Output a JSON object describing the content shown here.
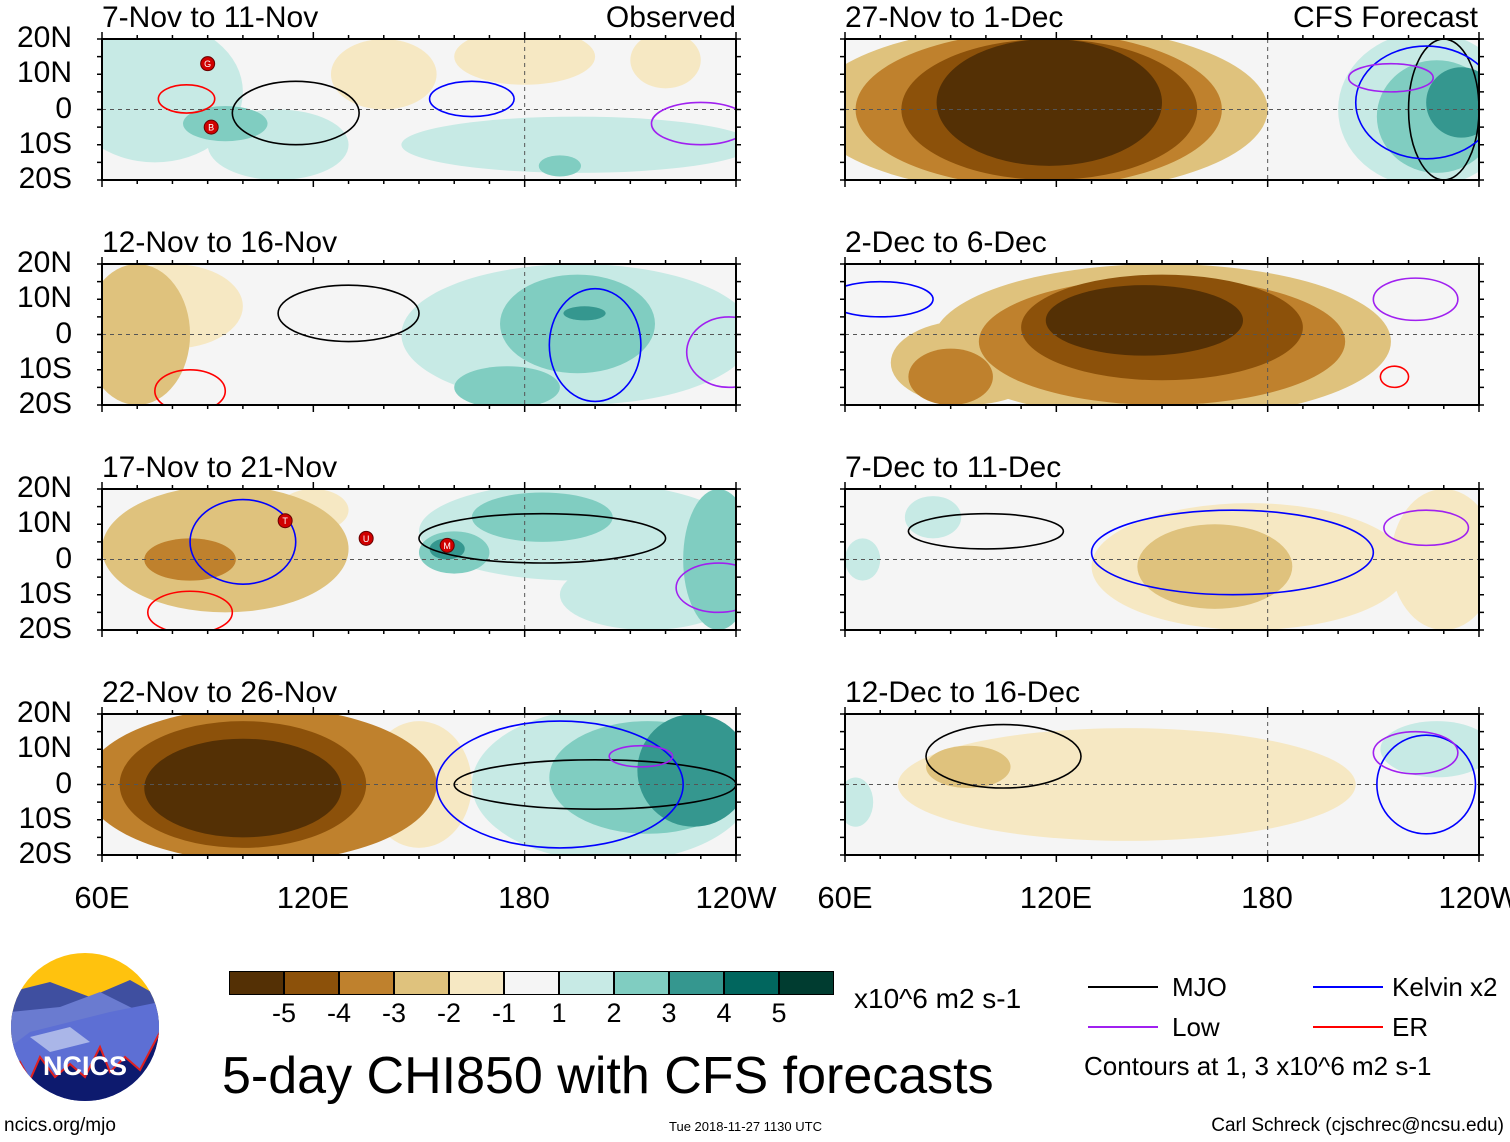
{
  "header": {
    "observed": "Observed",
    "forecast": "CFS Forecast"
  },
  "lat_labels": [
    "20N",
    "10N",
    "0",
    "10S",
    "20S"
  ],
  "lon_labels": [
    "60E",
    "120E",
    "180",
    "120W"
  ],
  "colorbar": {
    "labels": [
      "-5",
      "-4",
      "-3",
      "-2",
      "-1",
      "1",
      "2",
      "3",
      "4",
      "5"
    ],
    "units": "x10^6 m2 s-1",
    "colors": [
      "#543005",
      "#8c510a",
      "#bf812d",
      "#dfc27d",
      "#f6e8c3",
      "#f5f5f5",
      "#c7eae5",
      "#80cdc1",
      "#35978f",
      "#01665e",
      "#003c30"
    ]
  },
  "legend": {
    "mjo": "MJO",
    "kelvin": "Kelvin x2",
    "low": "Low",
    "er": "ER",
    "note": "Contours at 1, 3 x10^6 m2 s-1",
    "colors": {
      "mjo": "#000000",
      "kelvin": "#0000ff",
      "low": "#a020f0",
      "er": "#ff0000"
    }
  },
  "title": "5-day CHI850 with CFS forecasts",
  "footer": {
    "url": "ncics.org/mjo",
    "timestamp": "Tue 2018-11-27 1130 UTC",
    "author": "Carl Schreck (cjschrec@ncsu.edu)"
  },
  "logo": {
    "text": "NCICS"
  },
  "chart_data": {
    "type": "heatmap",
    "lon_range": [
      60,
      240
    ],
    "lat_range": [
      -20,
      20
    ],
    "panels": [
      {
        "title": "7-Nov to 11-Nov",
        "regions": [
          {
            "lon": 75,
            "lat": 5,
            "rlon": 25,
            "rlat": 20,
            "level": 1
          },
          {
            "lon": 95,
            "lat": -4,
            "rlon": 12,
            "rlat": 5,
            "level": 2
          },
          {
            "lon": 110,
            "lat": -10,
            "rlon": 20,
            "rlat": 10,
            "level": 1
          },
          {
            "lon": 195,
            "lat": -10,
            "rlon": 50,
            "rlat": 8,
            "level": 1
          },
          {
            "lon": 190,
            "lat": -16,
            "rlon": 6,
            "rlat": 3,
            "level": 2
          },
          {
            "lon": 180,
            "lat": 15,
            "rlon": 20,
            "rlat": 8,
            "level": -1
          },
          {
            "lon": 220,
            "lat": 14,
            "rlon": 10,
            "rlat": 8,
            "level": -1
          },
          {
            "lon": 140,
            "lat": 10,
            "rlon": 15,
            "rlat": 10,
            "level": -1
          }
        ],
        "contours": [
          {
            "type": "mjo",
            "lon": 115,
            "lat": -1,
            "rlon": 18,
            "rlat": 9
          },
          {
            "type": "er",
            "lon": 84,
            "lat": 3,
            "rlon": 8,
            "rlat": 4
          },
          {
            "type": "kelvin",
            "lon": 165,
            "lat": 3,
            "rlon": 12,
            "rlat": 5
          },
          {
            "type": "low",
            "lon": 230,
            "lat": -4,
            "rlon": 14,
            "rlat": 6
          }
        ],
        "storms": [
          {
            "label": "G",
            "lon": 90,
            "lat": 13
          },
          {
            "label": "B",
            "lon": 91,
            "lat": -5
          }
        ]
      },
      {
        "title": "12-Nov to 16-Nov",
        "regions": [
          {
            "lon": 70,
            "lat": 0,
            "rlon": 15,
            "rlat": 20,
            "level": -2
          },
          {
            "lon": 80,
            "lat": 8,
            "rlon": 20,
            "rlat": 12,
            "level": -1
          },
          {
            "lon": 195,
            "lat": 0,
            "rlon": 50,
            "rlat": 20,
            "level": 1
          },
          {
            "lon": 195,
            "lat": 3,
            "rlon": 22,
            "rlat": 14,
            "level": 2
          },
          {
            "lon": 197,
            "lat": 6,
            "rlon": 6,
            "rlat": 2,
            "level": 3
          },
          {
            "lon": 175,
            "lat": -15,
            "rlon": 15,
            "rlat": 6,
            "level": 2
          }
        ],
        "contours": [
          {
            "type": "mjo",
            "lon": 130,
            "lat": 6,
            "rlon": 20,
            "rlat": 8
          },
          {
            "type": "kelvin",
            "lon": 200,
            "lat": -3,
            "rlon": 13,
            "rlat": 16
          },
          {
            "type": "er",
            "lon": 85,
            "lat": -16,
            "rlon": 10,
            "rlat": 6
          },
          {
            "type": "low",
            "lon": 238,
            "lat": -5,
            "rlon": 12,
            "rlat": 10
          }
        ],
        "storms": []
      },
      {
        "title": "17-Nov to 21-Nov",
        "regions": [
          {
            "lon": 95,
            "lat": 3,
            "rlon": 35,
            "rlat": 18,
            "level": -2
          },
          {
            "lon": 85,
            "lat": 0,
            "rlon": 13,
            "rlat": 6,
            "level": -3
          },
          {
            "lon": 120,
            "lat": 14,
            "rlon": 10,
            "rlat": 6,
            "level": -1
          },
          {
            "lon": 195,
            "lat": 8,
            "rlon": 45,
            "rlat": 14,
            "level": 1
          },
          {
            "lon": 185,
            "lat": 12,
            "rlon": 20,
            "rlat": 7,
            "level": 2
          },
          {
            "lon": 160,
            "lat": 2,
            "rlon": 10,
            "rlat": 6,
            "level": 2
          },
          {
            "lon": 158,
            "lat": 3,
            "rlon": 5,
            "rlat": 3,
            "level": 3
          },
          {
            "lon": 235,
            "lat": 0,
            "rlon": 10,
            "rlat": 20,
            "level": 2
          },
          {
            "lon": 215,
            "lat": -10,
            "rlon": 25,
            "rlat": 10,
            "level": 1
          }
        ],
        "contours": [
          {
            "type": "mjo",
            "lon": 185,
            "lat": 6,
            "rlon": 35,
            "rlat": 7
          },
          {
            "type": "kelvin",
            "lon": 100,
            "lat": 5,
            "rlon": 15,
            "rlat": 12
          },
          {
            "type": "er",
            "lon": 85,
            "lat": -15,
            "rlon": 12,
            "rlat": 6
          },
          {
            "type": "low",
            "lon": 235,
            "lat": -8,
            "rlon": 12,
            "rlat": 7
          }
        ],
        "storms": [
          {
            "label": "T",
            "lon": 112,
            "lat": 11
          },
          {
            "label": "U",
            "lon": 135,
            "lat": 6
          },
          {
            "label": "M",
            "lon": 158,
            "lat": 4
          }
        ]
      },
      {
        "title": "22-Nov to 26-Nov",
        "regions": [
          {
            "lon": 105,
            "lat": 0,
            "rlon": 50,
            "rlat": 22,
            "level": -3
          },
          {
            "lon": 100,
            "lat": 0,
            "rlon": 35,
            "rlat": 18,
            "level": -4
          },
          {
            "lon": 100,
            "lat": -1,
            "rlon": 28,
            "rlat": 14,
            "level": -5
          },
          {
            "lon": 150,
            "lat": 0,
            "rlon": 15,
            "rlat": 18,
            "level": -1
          },
          {
            "lon": 205,
            "lat": 0,
            "rlon": 40,
            "rlat": 22,
            "level": 1
          },
          {
            "lon": 215,
            "lat": 2,
            "rlon": 28,
            "rlat": 16,
            "level": 2
          },
          {
            "lon": 228,
            "lat": 4,
            "rlon": 16,
            "rlat": 16,
            "level": 3
          }
        ],
        "contours": [
          {
            "type": "mjo",
            "lon": 200,
            "lat": 0,
            "rlon": 40,
            "rlat": 7
          },
          {
            "type": "kelvin",
            "lon": 190,
            "lat": 0,
            "rlon": 35,
            "rlat": 18
          },
          {
            "type": "low",
            "lon": 213,
            "lat": 8,
            "rlon": 9,
            "rlat": 3
          }
        ],
        "storms": []
      },
      {
        "title": "27-Nov to 1-Dec",
        "regions": [
          {
            "lon": 115,
            "lat": 0,
            "rlon": 65,
            "rlat": 24,
            "level": -2
          },
          {
            "lon": 115,
            "lat": 0,
            "rlon": 52,
            "rlat": 22,
            "level": -3
          },
          {
            "lon": 118,
            "lat": 0,
            "rlon": 42,
            "rlat": 20,
            "level": -4
          },
          {
            "lon": 118,
            "lat": 2,
            "rlon": 32,
            "rlat": 18,
            "level": -5
          },
          {
            "lon": 225,
            "lat": 0,
            "rlon": 25,
            "rlat": 22,
            "level": 1
          },
          {
            "lon": 228,
            "lat": -2,
            "rlon": 17,
            "rlat": 16,
            "level": 2
          },
          {
            "lon": 235,
            "lat": 2,
            "rlon": 10,
            "rlat": 10,
            "level": 3
          }
        ],
        "contours": [
          {
            "type": "mjo",
            "lon": 230,
            "lat": 0,
            "rlon": 10,
            "rlat": 20
          },
          {
            "type": "kelvin",
            "lon": 225,
            "lat": 2,
            "rlon": 20,
            "rlat": 16
          },
          {
            "type": "low",
            "lon": 215,
            "lat": 9,
            "rlon": 12,
            "rlat": 4
          }
        ],
        "storms": []
      },
      {
        "title": "2-Dec to 6-Dec",
        "regions": [
          {
            "lon": 150,
            "lat": -2,
            "rlon": 65,
            "rlat": 22,
            "level": -2
          },
          {
            "lon": 150,
            "lat": -2,
            "rlon": 52,
            "rlat": 18,
            "level": -3
          },
          {
            "lon": 150,
            "lat": 2,
            "rlon": 40,
            "rlat": 15,
            "level": -4
          },
          {
            "lon": 145,
            "lat": 4,
            "rlon": 28,
            "rlat": 10,
            "level": -5
          },
          {
            "lon": 90,
            "lat": -12,
            "rlon": 12,
            "rlat": 8,
            "level": -3
          },
          {
            "lon": 95,
            "lat": -8,
            "rlon": 22,
            "rlat": 12,
            "level": -2
          }
        ],
        "contours": [
          {
            "type": "kelvin",
            "lon": 70,
            "lat": 10,
            "rlon": 15,
            "rlat": 5
          },
          {
            "type": "low",
            "lon": 222,
            "lat": 10,
            "rlon": 12,
            "rlat": 6
          },
          {
            "type": "er",
            "lon": 216,
            "lat": -12,
            "rlon": 4,
            "rlat": 3
          }
        ],
        "storms": []
      },
      {
        "title": "7-Dec to 11-Dec",
        "regions": [
          {
            "lon": 175,
            "lat": -2,
            "rlon": 45,
            "rlat": 18,
            "level": -1
          },
          {
            "lon": 165,
            "lat": -2,
            "rlon": 22,
            "rlat": 12,
            "level": -2
          },
          {
            "lon": 230,
            "lat": 0,
            "rlon": 15,
            "rlat": 20,
            "level": -1
          },
          {
            "lon": 85,
            "lat": 12,
            "rlon": 8,
            "rlat": 6,
            "level": 1
          },
          {
            "lon": 65,
            "lat": 0,
            "rlon": 5,
            "rlat": 6,
            "level": 1
          }
        ],
        "contours": [
          {
            "type": "mjo",
            "lon": 100,
            "lat": 8,
            "rlon": 22,
            "rlat": 5
          },
          {
            "type": "kelvin",
            "lon": 170,
            "lat": 2,
            "rlon": 40,
            "rlat": 12
          },
          {
            "type": "low",
            "lon": 225,
            "lat": 9,
            "rlon": 12,
            "rlat": 5
          }
        ],
        "storms": []
      },
      {
        "title": "12-Dec to 16-Dec",
        "regions": [
          {
            "lon": 140,
            "lat": 0,
            "rlon": 65,
            "rlat": 16,
            "level": -1
          },
          {
            "lon": 95,
            "lat": 5,
            "rlon": 12,
            "rlat": 6,
            "level": -2
          },
          {
            "lon": 228,
            "lat": 10,
            "rlon": 16,
            "rlat": 8,
            "level": 1
          },
          {
            "lon": 63,
            "lat": -5,
            "rlon": 5,
            "rlat": 7,
            "level": 1
          }
        ],
        "contours": [
          {
            "type": "mjo",
            "lon": 105,
            "lat": 8,
            "rlon": 22,
            "rlat": 9
          },
          {
            "type": "kelvin",
            "lon": 225,
            "lat": 0,
            "rlon": 14,
            "rlat": 14
          },
          {
            "type": "low",
            "lon": 222,
            "lat": 9,
            "rlon": 12,
            "rlat": 6
          }
        ],
        "storms": []
      }
    ]
  }
}
